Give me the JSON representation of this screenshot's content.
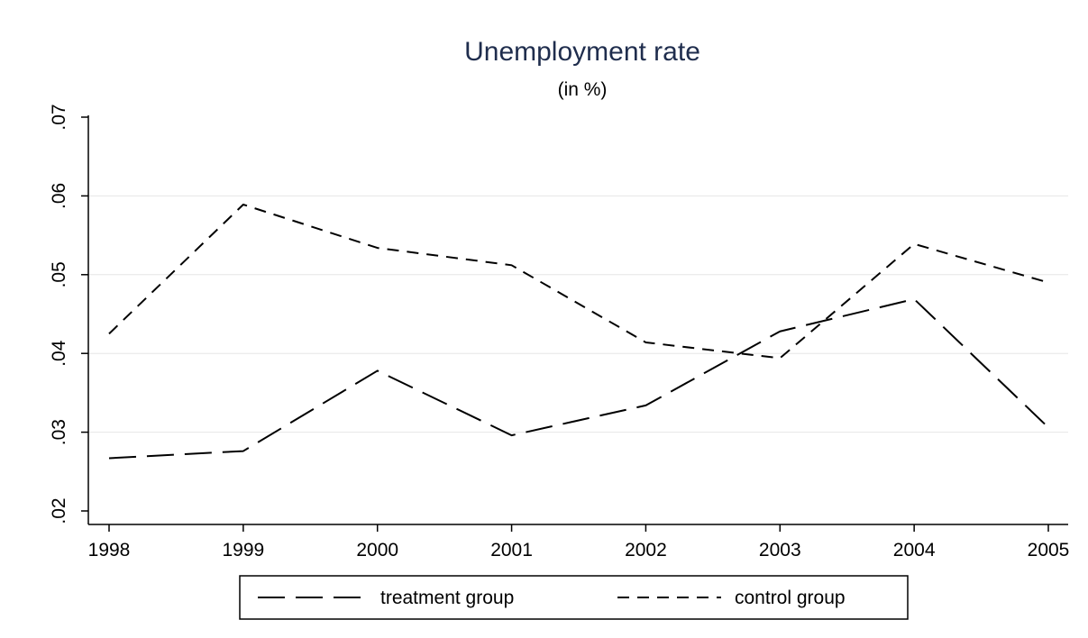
{
  "chart_data": {
    "type": "line",
    "title": "Unemployment rate",
    "subtitle": "(in %)",
    "xlabel": "",
    "ylabel": "",
    "x": [
      1998,
      1999,
      2000,
      2001,
      2002,
      2003,
      2004,
      2005
    ],
    "x_tick_labels": [
      "1998",
      "1999",
      "2000",
      "2001",
      "2002",
      "2003",
      "2004",
      "2005"
    ],
    "y_ticks": [
      0.02,
      0.03,
      0.04,
      0.05,
      0.06,
      0.07
    ],
    "y_tick_labels": [
      ".02",
      ".03",
      ".04",
      ".05",
      ".06",
      ".07"
    ],
    "ylim": [
      0.02,
      0.07
    ],
    "grid": true,
    "legend_position": "bottom",
    "series": [
      {
        "name": "treatment group",
        "dash": "long-dash",
        "color": "#000000",
        "values": [
          0.0267,
          0.0276,
          0.0378,
          0.0296,
          0.0334,
          0.0428,
          0.0469,
          0.0306
        ]
      },
      {
        "name": "control group",
        "dash": "short-dash",
        "color": "#000000",
        "values": [
          0.0425,
          0.0589,
          0.0534,
          0.0512,
          0.0414,
          0.0394,
          0.0539,
          0.049
        ]
      }
    ]
  }
}
